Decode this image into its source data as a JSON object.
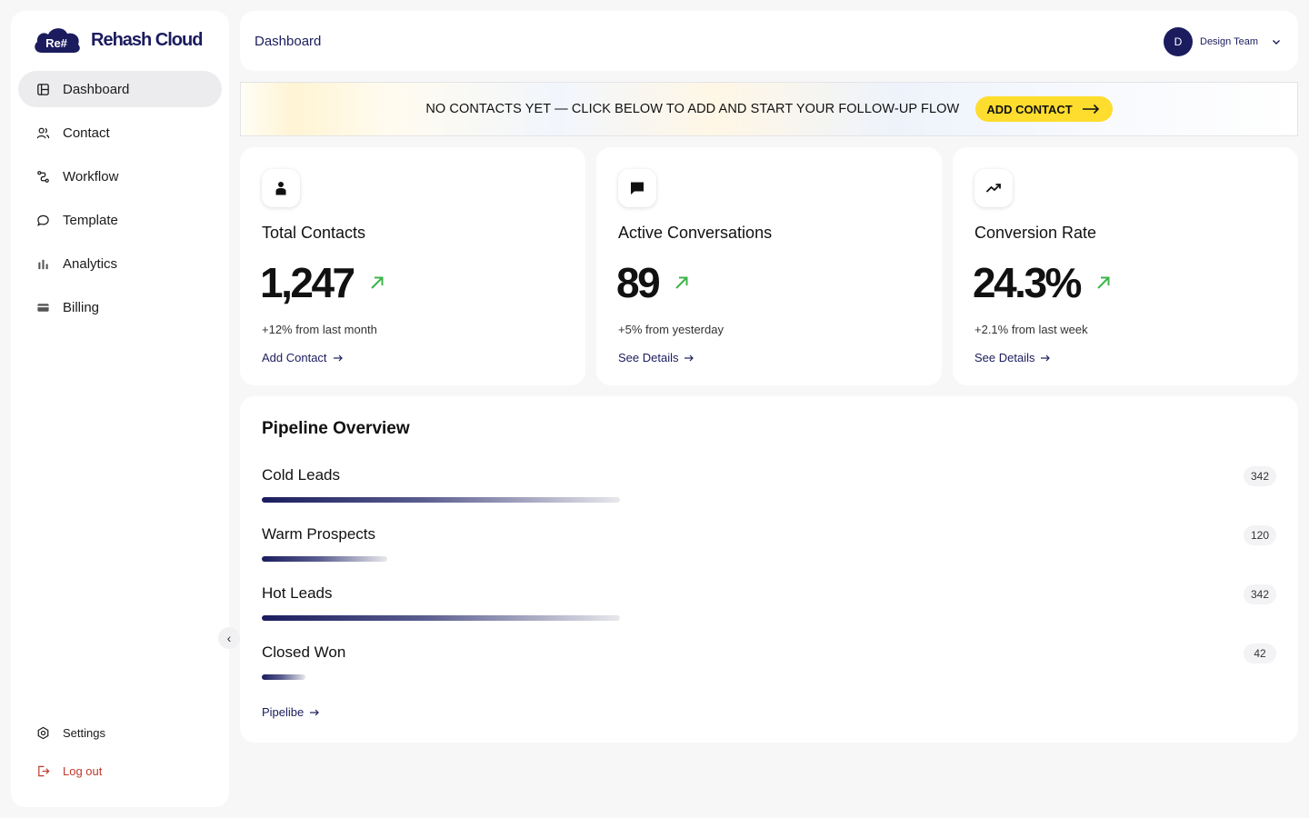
{
  "brand": {
    "logo_mark": "Re#",
    "name": "Rehash Cloud",
    "color": "#1b1c5e"
  },
  "sidebar": {
    "items": [
      {
        "label": "Dashboard",
        "icon": "dashboard-icon",
        "active": true
      },
      {
        "label": "Contact",
        "icon": "users-icon"
      },
      {
        "label": "Workflow",
        "icon": "workflow-icon"
      },
      {
        "label": "Template",
        "icon": "chat-bubble-icon"
      },
      {
        "label": "Analytics",
        "icon": "bar-chart-icon"
      },
      {
        "label": "Billing",
        "icon": "credit-card-icon"
      }
    ],
    "settings_label": "Settings",
    "logout_label": "Log out",
    "collapse_glyph": "‹"
  },
  "header": {
    "title": "Dashboard",
    "user": {
      "initial": "D",
      "name": "Design Team"
    }
  },
  "banner": {
    "text": "NO CONTACTS YET — CLICK BELOW TO ADD AND START YOUR FOLLOW-UP FLOW",
    "button_label": "ADD CONTACT",
    "button_color": "#fedd2e"
  },
  "stats": [
    {
      "title": "Total Contacts",
      "value": "1,247",
      "sub": "+12% from last month",
      "link": "Add Contact",
      "icon": "user-icon"
    },
    {
      "title": "Active Conversations",
      "value": "89",
      "sub": "+5% from yesterday",
      "link": "See Details",
      "icon": "message-icon"
    },
    {
      "title": "Conversion Rate",
      "value": "24.3%",
      "sub": "+2.1% from last week",
      "link": "See Details",
      "icon": "trending-up-icon"
    }
  ],
  "trend_color": "#3cb54a",
  "pipeline": {
    "title": "Pipeline Overview",
    "max": 342,
    "stages": [
      {
        "label": "Cold Leads",
        "count": 342
      },
      {
        "label": "Warm Prospects",
        "count": 120
      },
      {
        "label": "Hot Leads",
        "count": 342
      },
      {
        "label": "Closed Won",
        "count": 42
      }
    ],
    "link": "Pipelibe"
  }
}
